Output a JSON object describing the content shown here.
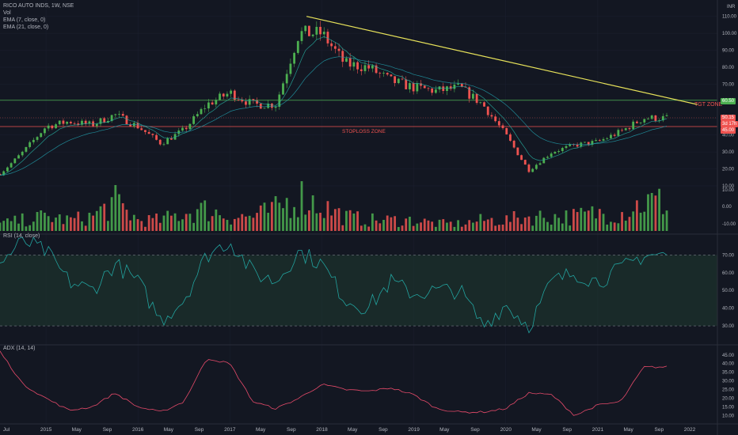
{
  "header": {
    "symbol_line": "RICO AUTO INDS, 1W, NSE",
    "vol_label": "Vol",
    "ema7_label": "EMA (7, close, 0)",
    "ema21_label": "EMA (21, close, 0)",
    "currency": "INR"
  },
  "colors": {
    "background": "#131722",
    "up": "#26a69a",
    "up_bright": "#4caf50",
    "down": "#ef5350",
    "trendline": "#e8e35a",
    "rsi_line": "#22a39f",
    "rsi_band": "#1f3b30",
    "adx_line": "#e64a6a",
    "axis_text": "#b2b5be",
    "target_line": "#4caf50",
    "stoploss_line": "#ef5350"
  },
  "price_panel": {
    "y_ticks": [
      "110.00",
      "100.00",
      "90.00",
      "80.00",
      "70.00",
      "60.00",
      "50.00",
      "40.00",
      "30.00",
      "20.00",
      "10.00"
    ],
    "target_zone_label": "TGT ZONE",
    "stoploss_zone_label": "STOPLOSS ZONE",
    "target_price_tag": "60.50",
    "last_price_tag": "50.15",
    "countdown_tag": "3d 17h",
    "stoploss_price_tag": "45.00"
  },
  "volume_panel": {
    "y_ticks": [
      "10.00",
      "0.00",
      "-10.00"
    ]
  },
  "rsi_panel": {
    "label": "RSI (14, close)",
    "y_ticks": [
      "70.00",
      "60.00",
      "50.00",
      "40.00",
      "30.00"
    ],
    "upper_band": 70,
    "lower_band": 30
  },
  "adx_panel": {
    "label": "ADX (14, 14)",
    "y_ticks": [
      "45.00",
      "40.00",
      "35.00",
      "30.00",
      "25.00",
      "20.00",
      "15.00",
      "10.00"
    ]
  },
  "x_axis": {
    "labels": [
      "Jul",
      "2015",
      "May",
      "Sep",
      "2016",
      "May",
      "Sep",
      "2017",
      "May",
      "Sep",
      "2018",
      "May",
      "Sep",
      "2019",
      "May",
      "Sep",
      "2020",
      "May",
      "Sep",
      "2021",
      "May",
      "Sep",
      "2022"
    ]
  },
  "chart_data": [
    {
      "type": "candlestick",
      "title": "RICO AUTO INDS, 1W, NSE",
      "x": [
        "2014-07",
        "2014-10",
        "2015-01",
        "2015-04",
        "2015-07",
        "2015-10",
        "2016-01",
        "2016-04",
        "2016-07",
        "2016-10",
        "2017-01",
        "2017-04",
        "2017-07",
        "2017-10",
        "2018-01",
        "2018-04",
        "2018-07",
        "2018-10",
        "2019-01",
        "2019-04",
        "2019-07",
        "2019-10",
        "2020-01",
        "2020-04",
        "2020-07",
        "2020-10",
        "2021-01",
        "2021-04",
        "2021-07"
      ],
      "close": [
        17,
        30,
        45,
        48,
        46,
        52,
        45,
        35,
        43,
        58,
        65,
        58,
        58,
        100,
        100,
        82,
        80,
        72,
        68,
        66,
        68,
        58,
        40,
        19,
        30,
        34,
        36,
        42,
        50
      ],
      "ylim": [
        10,
        115
      ],
      "overlays": [
        {
          "name": "EMA (7, close, 0)"
        },
        {
          "name": "EMA (21, close, 0)"
        }
      ],
      "trendline": {
        "from": {
          "x": "2017-11",
          "y": 110
        },
        "to": {
          "x": "2022-02",
          "y": 58
        }
      },
      "horizontal_levels": [
        {
          "label": "TGT ZONE",
          "value": 60.5
        },
        {
          "label": "STOPLOSS ZONE",
          "value": 45
        }
      ]
    },
    {
      "type": "bar",
      "title": "Vol",
      "x": [
        "2014-07",
        "2014-10",
        "2015-01",
        "2015-04",
        "2015-07",
        "2015-10",
        "2016-01",
        "2016-04",
        "2016-07",
        "2016-10",
        "2017-01",
        "2017-04",
        "2017-07",
        "2017-10",
        "2018-01",
        "2018-04",
        "2018-07",
        "2018-10",
        "2019-01",
        "2019-04",
        "2019-07",
        "2019-10",
        "2020-01",
        "2020-04",
        "2020-07",
        "2020-10",
        "2021-01",
        "2021-04",
        "2021-07"
      ],
      "values": [
        2,
        3,
        4,
        3,
        4,
        8,
        3,
        3,
        5,
        6,
        4,
        4,
        6,
        10,
        7,
        4,
        3,
        3,
        3,
        2,
        2,
        3,
        3,
        4,
        4,
        4,
        5,
        5,
        8
      ]
    },
    {
      "type": "line",
      "title": "RSI (14, close)",
      "x": [
        "2014-07",
        "2014-10",
        "2015-01",
        "2015-04",
        "2015-07",
        "2015-10",
        "2016-01",
        "2016-04",
        "2016-07",
        "2016-10",
        "2017-01",
        "2017-04",
        "2017-07",
        "2017-10",
        "2018-01",
        "2018-04",
        "2018-07",
        "2018-10",
        "2019-01",
        "2019-04",
        "2019-07",
        "2019-10",
        "2020-01",
        "2020-04",
        "2020-07",
        "2020-10",
        "2021-01",
        "2021-04",
        "2021-07"
      ],
      "values": [
        65,
        78,
        72,
        55,
        50,
        65,
        55,
        33,
        45,
        70,
        78,
        60,
        55,
        72,
        65,
        45,
        40,
        55,
        48,
        50,
        50,
        30,
        42,
        30,
        55,
        60,
        55,
        62,
        70
      ],
      "ylim": [
        22,
        80
      ],
      "bands": [
        30,
        70
      ]
    },
    {
      "type": "line",
      "title": "ADX (14, 14)",
      "x": [
        "2014-07",
        "2014-10",
        "2015-01",
        "2015-04",
        "2015-07",
        "2015-10",
        "2016-01",
        "2016-04",
        "2016-07",
        "2016-10",
        "2017-01",
        "2017-04",
        "2017-07",
        "2017-10",
        "2018-01",
        "2018-04",
        "2018-07",
        "2018-10",
        "2019-01",
        "2019-04",
        "2019-07",
        "2019-10",
        "2020-01",
        "2020-04",
        "2020-07",
        "2020-10",
        "2021-01",
        "2021-04",
        "2021-07"
      ],
      "values": [
        47,
        28,
        20,
        13,
        15,
        23,
        15,
        12,
        18,
        43,
        40,
        18,
        14,
        20,
        28,
        25,
        24,
        26,
        22,
        14,
        12,
        12,
        14,
        23,
        22,
        10,
        16,
        18,
        38
      ],
      "ylim": [
        7,
        49
      ]
    }
  ]
}
